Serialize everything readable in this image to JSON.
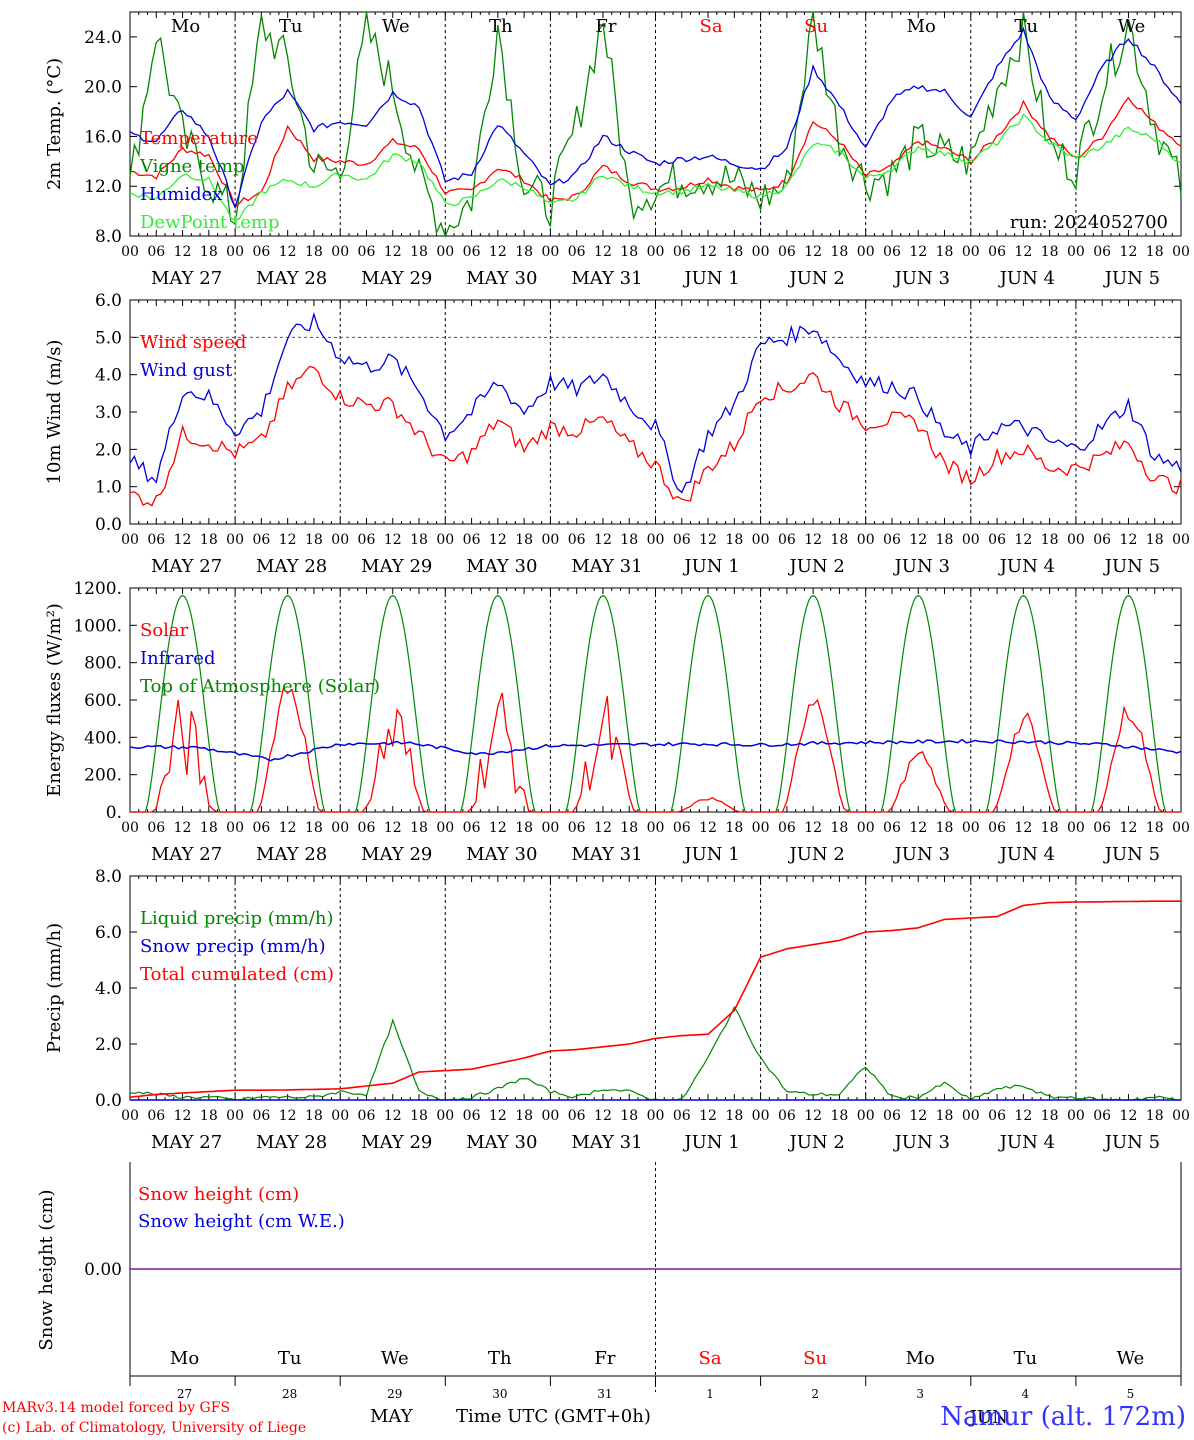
{
  "chart_data": [
    {
      "type": "line",
      "panel": "temperature",
      "ylabel": "2m Temp. (°C)",
      "ylim": [
        8,
        26
      ],
      "yticks": [
        "8.0",
        "12.0",
        "16.0",
        "20.0",
        "24.0"
      ],
      "x_hours": [
        0,
        6,
        12,
        18,
        24,
        30,
        36,
        42,
        48,
        54,
        60,
        66,
        72,
        78,
        84,
        90,
        96,
        102,
        108,
        114,
        120,
        126,
        132,
        138,
        144,
        150,
        156,
        162,
        168,
        174,
        180,
        186,
        192,
        198,
        204,
        210,
        216,
        222,
        228,
        234,
        240
      ],
      "annotation": "run: 2024052700",
      "series": [
        {
          "name": "Temperature",
          "color": "#ff0000",
          "values": [
            13.2,
            12.8,
            15.0,
            14.5,
            10.5,
            11.5,
            16.8,
            14.2,
            14.0,
            13.8,
            15.6,
            15.0,
            11.5,
            11.6,
            13.5,
            12.5,
            10.8,
            11.2,
            13.6,
            12.4,
            11.8,
            11.9,
            12.6,
            11.9,
            11.6,
            12.4,
            17.2,
            15.6,
            12.8,
            13.6,
            15.6,
            15.0,
            14.0,
            16.0,
            18.6,
            16.0,
            14.2,
            16.0,
            19.2,
            17.0,
            15.4
          ]
        },
        {
          "name": "Vigne temp",
          "color": "#008800",
          "values": [
            12.0,
            24.5,
            16.0,
            12.5,
            9.5,
            25.0,
            22.0,
            13.5,
            13.0,
            24.5,
            20.0,
            12.5,
            8.5,
            11.0,
            25.0,
            12.0,
            10.5,
            17.0,
            25.5,
            11.0,
            11.8,
            12.6,
            12.8,
            12.4,
            11.0,
            12.0,
            25.5,
            16.0,
            12.4,
            13.0,
            15.6,
            14.6,
            14.0,
            20.0,
            24.5,
            15.0,
            13.5,
            20.0,
            25.2,
            17.0,
            12.0
          ]
        },
        {
          "name": "Humidex",
          "color": "#0000dd",
          "values": [
            16.2,
            15.6,
            18.2,
            16.0,
            10.4,
            17.2,
            19.6,
            16.6,
            17.2,
            17.0,
            19.5,
            18.4,
            12.4,
            13.0,
            17.0,
            14.6,
            12.0,
            13.0,
            16.0,
            14.8,
            13.8,
            14.2,
            14.4,
            13.8,
            13.4,
            15.0,
            21.5,
            18.5,
            15.0,
            19.0,
            20.0,
            19.6,
            17.5,
            21.5,
            24.5,
            19.0,
            17.4,
            21.5,
            24.0,
            21.5,
            18.6
          ]
        },
        {
          "name": "DewPoint temp",
          "color": "#33ee33",
          "values": [
            11.5,
            11.0,
            13.0,
            12.5,
            9.0,
            11.5,
            12.5,
            12.0,
            13.0,
            12.5,
            14.5,
            14.0,
            10.5,
            11.0,
            12.5,
            12.0,
            10.5,
            11.0,
            13.0,
            12.0,
            11.5,
            11.6,
            12.0,
            11.6,
            11.2,
            12.0,
            15.4,
            14.8,
            12.6,
            13.4,
            15.2,
            14.6,
            14.0,
            15.5,
            17.6,
            15.5,
            14.2,
            15.2,
            16.6,
            15.8,
            13.8
          ]
        }
      ]
    },
    {
      "type": "line",
      "panel": "wind",
      "ylabel": "10m Wind (m/s)",
      "ylim": [
        0,
        6
      ],
      "yticks": [
        "0.0",
        "1.0",
        "2.0",
        "3.0",
        "4.0",
        "5.0",
        "6.0"
      ],
      "x_hours": [
        0,
        6,
        12,
        18,
        24,
        30,
        36,
        42,
        48,
        54,
        60,
        66,
        72,
        78,
        84,
        90,
        96,
        102,
        108,
        114,
        120,
        126,
        132,
        138,
        144,
        150,
        156,
        162,
        168,
        174,
        180,
        186,
        192,
        198,
        204,
        210,
        216,
        222,
        228,
        234,
        240
      ],
      "series": [
        {
          "name": "Wind speed",
          "color": "#ff0000",
          "values": [
            0.8,
            0.6,
            2.4,
            2.2,
            1.9,
            2.2,
            3.6,
            4.2,
            3.4,
            3.2,
            3.2,
            2.4,
            1.6,
            1.9,
            2.8,
            2.0,
            2.6,
            2.5,
            2.8,
            2.1,
            1.6,
            0.5,
            1.5,
            2.1,
            3.5,
            3.6,
            4.0,
            3.2,
            2.7,
            2.8,
            2.7,
            1.6,
            1.2,
            1.8,
            2.0,
            1.5,
            1.5,
            1.8,
            2.2,
            1.2,
            1.0
          ]
        },
        {
          "name": "Wind gust",
          "color": "#0000dd",
          "values": [
            1.7,
            1.2,
            3.6,
            3.4,
            2.5,
            3.0,
            5.0,
            5.4,
            4.5,
            4.2,
            4.4,
            3.6,
            2.4,
            3.0,
            3.8,
            3.0,
            3.8,
            3.6,
            4.0,
            3.2,
            2.6,
            0.8,
            2.4,
            3.2,
            4.8,
            5.0,
            5.3,
            4.4,
            3.8,
            3.7,
            3.4,
            2.4,
            2.0,
            2.6,
            2.6,
            2.2,
            2.0,
            2.6,
            3.2,
            1.8,
            1.5
          ]
        }
      ]
    },
    {
      "type": "line",
      "panel": "energy",
      "ylabel": "Energy fluxes (W/m²)",
      "ylim": [
        0,
        1200
      ],
      "yticks": [
        "0.",
        "200.",
        "400.",
        "600.",
        "800.",
        "1000.",
        "1200."
      ],
      "series": [
        {
          "name": "Solar",
          "color": "#ff0000",
          "peaks": [
            650,
            750,
            680,
            720,
            660,
            80,
            690,
            330,
            540,
            600
          ]
        },
        {
          "name": "Infrared",
          "color": "#0000dd",
          "values": [
            350,
            345,
            280,
            365,
            370,
            310,
            355,
            360,
            365,
            360,
            370,
            375,
            380,
            375,
            360,
            320
          ]
        },
        {
          "name": "Top of Atmosphere (Solar)",
          "color": "#008800",
          "peak": 1160
        }
      ]
    },
    {
      "type": "line",
      "panel": "precip",
      "ylabel": "Precip (mm/h)",
      "ylim": [
        0,
        8
      ],
      "yticks": [
        "0.0",
        "2.0",
        "4.0",
        "6.0",
        "8.0"
      ],
      "x_hours": [
        0,
        6,
        12,
        18,
        24,
        30,
        36,
        42,
        48,
        54,
        60,
        66,
        72,
        78,
        84,
        90,
        96,
        102,
        108,
        114,
        120,
        126,
        132,
        138,
        144,
        150,
        156,
        162,
        168,
        174,
        180,
        186,
        192,
        198,
        204,
        210,
        216,
        222,
        228,
        234,
        240
      ],
      "series": [
        {
          "name": "Liquid precip (mm/h)",
          "color": "#008800",
          "values": [
            0.3,
            0.2,
            0.1,
            0.1,
            0.0,
            0.1,
            0.1,
            0.1,
            0.3,
            0.2,
            2.8,
            0.3,
            0.0,
            0.1,
            0.4,
            0.8,
            0.3,
            0.1,
            0.4,
            0.3,
            0.0,
            0.0,
            1.5,
            3.3,
            1.5,
            0.3,
            0.2,
            0.2,
            1.2,
            0.1,
            0.1,
            0.6,
            0.0,
            0.4,
            0.5,
            0.1,
            0.1,
            0.0,
            0.0,
            0.1,
            0.0
          ]
        },
        {
          "name": "Snow precip (mm/h)",
          "color": "#0000dd",
          "values": [
            0
          ]
        },
        {
          "name": "Total cumulated (cm)",
          "color": "#ff0000",
          "values": [
            0.1,
            0.2,
            0.25,
            0.3,
            0.35,
            0.35,
            0.36,
            0.38,
            0.4,
            0.5,
            0.6,
            1.0,
            1.05,
            1.1,
            1.3,
            1.5,
            1.75,
            1.8,
            1.9,
            2.0,
            2.2,
            2.3,
            2.35,
            3.2,
            5.1,
            5.4,
            5.55,
            5.7,
            6.0,
            6.05,
            6.15,
            6.45,
            6.5,
            6.55,
            6.95,
            7.05,
            7.07,
            7.08,
            7.09,
            7.1,
            7.1
          ]
        }
      ]
    },
    {
      "type": "line",
      "panel": "snow",
      "ylabel": "Snow height (cm)",
      "ylim": [
        -1,
        1
      ],
      "yticks": [
        "0.00"
      ],
      "series": [
        {
          "name": "Snow height (cm)",
          "color": "#ff0000",
          "values": [
            0,
            0
          ]
        },
        {
          "name": "Snow height (cm W.E.)",
          "color": "#0000dd",
          "values": [
            0,
            0
          ]
        }
      ]
    }
  ],
  "x_axis": {
    "hour_ticks": [
      "00",
      "06",
      "12",
      "18"
    ],
    "hour_end": "00",
    "dates": [
      "MAY 27",
      "MAY 28",
      "MAY 29",
      "MAY 30",
      "MAY 31",
      "JUN  1",
      "JUN  2",
      "JUN  3",
      "JUN  4",
      "JUN  5"
    ],
    "weekdays": [
      "Mo",
      "Tu",
      "We",
      "Th",
      "Fr",
      "Sa",
      "Su",
      "Mo",
      "Tu",
      "We"
    ],
    "weekend_color": "#ff0000",
    "day_numbers": [
      "27",
      "28",
      "29",
      "30",
      "31",
      "1",
      "2",
      "3",
      "4",
      "5"
    ],
    "month": "MAY",
    "month2": "JUN",
    "title": "Time UTC (GMT+0h)"
  },
  "footer": {
    "line1": "MARv3.14 model forced by GFS",
    "line2": "(c) Lab. of Climatology, University of Liege",
    "station": "Namur (alt. 172m)"
  }
}
